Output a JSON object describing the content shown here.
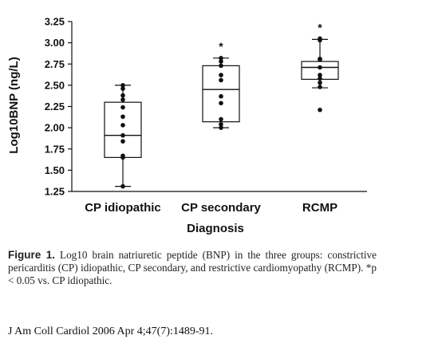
{
  "chart_data": {
    "type": "box",
    "title": "",
    "xlabel": "Diagnosis",
    "ylabel": "Log10BNP (ng/L)",
    "ylim": [
      1.25,
      3.25
    ],
    "y_ticks": [
      "1.25",
      "1.50",
      "1.75",
      "2.00",
      "2.25",
      "2.50",
      "2.75",
      "3.00",
      "3.25"
    ],
    "y_tick_values": [
      1.25,
      1.5,
      1.75,
      2.0,
      2.25,
      2.5,
      2.75,
      3.0,
      3.25
    ],
    "categories": [
      "CP idiopathic",
      "CP secondary",
      "RCMP"
    ],
    "groups": [
      {
        "category": "CP idiopathic",
        "whisker_low": 1.31,
        "q1": 1.65,
        "median": 1.91,
        "q3": 2.3,
        "whisker_high": 2.5,
        "significance": "",
        "points": [
          1.31,
          1.65,
          1.67,
          1.84,
          1.91,
          2.03,
          2.13,
          2.24,
          2.33,
          2.38,
          2.46,
          2.5
        ]
      },
      {
        "category": "CP secondary",
        "whisker_low": 2.0,
        "q1": 2.07,
        "median": 2.45,
        "q3": 2.73,
        "whisker_high": 2.82,
        "significance": "*",
        "points": [
          2.0,
          2.04,
          2.1,
          2.29,
          2.37,
          2.56,
          2.62,
          2.73,
          2.78,
          2.82
        ]
      },
      {
        "category": "RCMP",
        "whisker_low": 2.47,
        "q1": 2.57,
        "median": 2.71,
        "q3": 2.78,
        "whisker_high": 3.04,
        "significance": "*",
        "points": [
          2.21,
          2.48,
          2.53,
          2.58,
          2.62,
          2.71,
          2.8,
          2.81,
          3.03,
          3.05
        ]
      }
    ]
  },
  "caption": {
    "label": "Figure 1.",
    "text": "Log10 brain natriuretic peptide (BNP) in the three groups: constrictive pericarditis (CP) idiopathic, CP secondary, and restrictive cardiomyopathy (RCMP). *p < 0.05 vs. CP idiopathic."
  },
  "citation": "J Am Coll Cardiol 2006 Apr 4;47(7):1489-91."
}
